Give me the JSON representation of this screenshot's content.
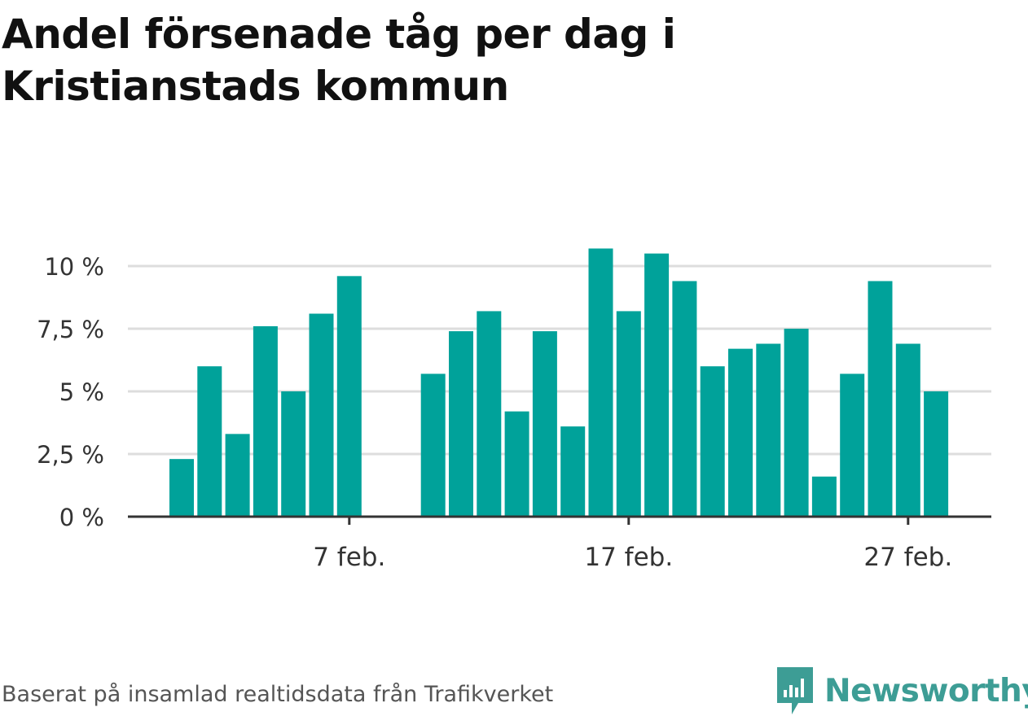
{
  "title": "Andel försenade tåg per dag i Kristianstads kommun",
  "footer": "Baserat på insamlad realtidsdata från Trafikverket",
  "brand": "Newsworthy",
  "colors": {
    "bar": "#00a29a",
    "grid": "#dddddd",
    "axis": "#333333",
    "brand": "#3d9d95"
  },
  "chart_data": {
    "type": "bar",
    "x_tick_labels": [
      "7 feb.",
      "17 feb.",
      "27 feb."
    ],
    "y_tick_labels": [
      "0 %",
      "2,5 %",
      "5 %",
      "7,5 %",
      "10 %"
    ],
    "y_ticks": [
      0,
      2.5,
      5,
      7.5,
      10
    ],
    "ylim": [
      0,
      11
    ],
    "x": [
      "2021-02-01",
      "2021-02-02",
      "2021-02-03",
      "2021-02-04",
      "2021-02-05",
      "2021-02-06",
      "2021-02-07",
      "2021-02-08",
      "2021-02-09",
      "2021-02-10",
      "2021-02-11",
      "2021-02-12",
      "2021-02-13",
      "2021-02-14",
      "2021-02-15",
      "2021-02-16",
      "2021-02-17",
      "2021-02-18",
      "2021-02-19",
      "2021-02-20",
      "2021-02-21",
      "2021-02-22",
      "2021-02-23",
      "2021-02-24",
      "2021-02-25",
      "2021-02-26",
      "2021-02-27",
      "2021-02-28"
    ],
    "values": [
      2.3,
      6.0,
      3.3,
      7.6,
      5.0,
      8.1,
      9.6,
      null,
      null,
      5.7,
      7.4,
      8.2,
      4.2,
      7.4,
      3.6,
      10.7,
      8.2,
      10.5,
      9.4,
      6.0,
      6.7,
      6.9,
      7.5,
      1.6,
      5.7,
      9.4,
      6.9,
      5.0
    ],
    "grid": true
  }
}
